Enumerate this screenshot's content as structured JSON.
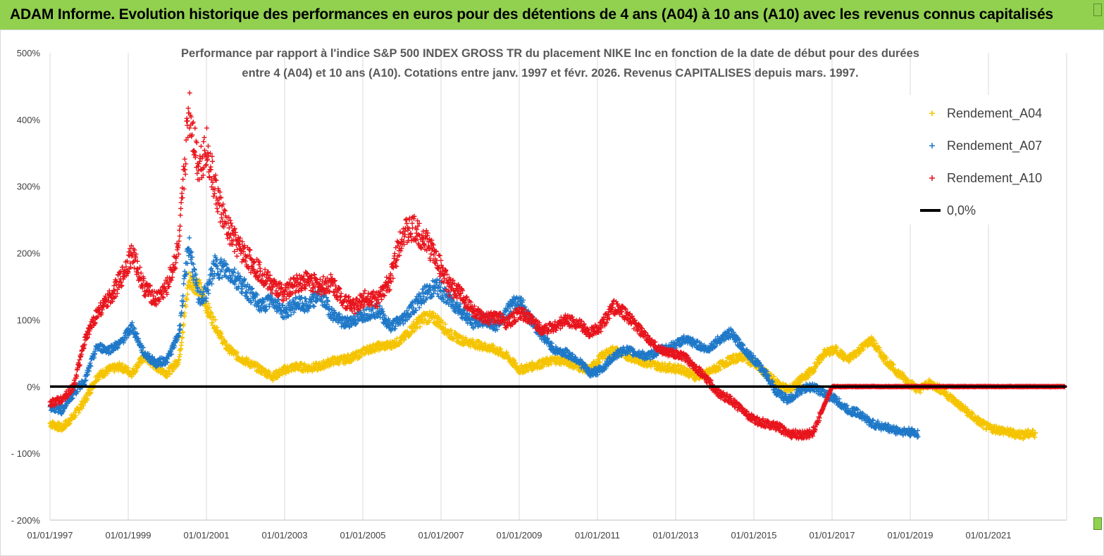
{
  "banner": {
    "title": "ADAM Informe. Evolution historique des performances en euros pour des détentions de 4 ans (A04) à 10 ans (A10) avec les revenus connus capitalisés"
  },
  "chart_data": {
    "type": "scatter",
    "title_line1": "Performance par rapport à l'indice S&P 500 INDEX GROSS TR  du placement NIKE Inc en fonction de la date de début pour des durées",
    "title_line2": "entre 4 (A04) et 10 ans (A10). Cotations entre janv. 1997 et févr. 2026. Revenus CAPITALISES depuis mars. 1997.",
    "xlabel": "",
    "ylabel": "",
    "xlim": [
      1997.0,
      2023.0
    ],
    "ylim": [
      -200,
      500
    ],
    "y_ticks": [
      -200,
      -100,
      0,
      100,
      200,
      300,
      400,
      500
    ],
    "y_tick_labels": [
      "- 200%",
      "- 100%",
      "0%",
      "100%",
      "200%",
      "300%",
      "400%",
      "500%"
    ],
    "x_ticks": [
      1997,
      1999,
      2001,
      2003,
      2005,
      2007,
      2009,
      2011,
      2013,
      2015,
      2017,
      2019,
      2021
    ],
    "x_tick_labels": [
      "01/01/1997",
      "01/01/1999",
      "01/01/2001",
      "01/01/2003",
      "01/01/2005",
      "01/01/2007",
      "01/01/2009",
      "01/01/2011",
      "01/01/2013",
      "01/01/2015",
      "01/01/2017",
      "01/01/2019",
      "01/01/2021"
    ],
    "grid": "vertical",
    "legend_position": "top-right",
    "series": [
      {
        "name": "Rendement_A04",
        "color": "#f5c400",
        "marker": "plus",
        "x": [
          1997.0,
          1997.3,
          1997.6,
          1997.9,
          1998.2,
          1998.5,
          1998.8,
          1999.1,
          1999.4,
          1999.7,
          2000.0,
          2000.3,
          2000.55,
          2000.8,
          2001.0,
          2001.2,
          2001.5,
          2001.8,
          2002.1,
          2002.4,
          2002.7,
          2003.0,
          2003.3,
          2003.6,
          2003.9,
          2004.2,
          2004.5,
          2004.8,
          2005.1,
          2005.4,
          2005.7,
          2006.0,
          2006.3,
          2006.6,
          2006.9,
          2007.2,
          2007.5,
          2007.8,
          2008.1,
          2008.4,
          2008.7,
          2009.0,
          2009.3,
          2009.6,
          2009.9,
          2010.2,
          2010.5,
          2010.8,
          2011.1,
          2011.4,
          2011.7,
          2012.0,
          2012.3,
          2012.6,
          2012.9,
          2013.2,
          2013.5,
          2013.8,
          2014.1,
          2014.4,
          2014.7,
          2015.0,
          2015.3,
          2015.6,
          2015.9,
          2016.2,
          2016.5,
          2016.8,
          2017.1,
          2017.4,
          2017.7,
          2018.0,
          2018.3,
          2018.6,
          2018.9,
          2019.2,
          2019.5,
          2019.8,
          2020.1,
          2020.4,
          2020.7,
          2021.0,
          2021.3,
          2021.6,
          2021.9,
          2022.2
        ],
        "y": [
          -55,
          -62,
          -45,
          -20,
          15,
          25,
          30,
          20,
          45,
          30,
          20,
          40,
          160,
          150,
          120,
          95,
          60,
          45,
          35,
          25,
          15,
          25,
          30,
          28,
          30,
          38,
          40,
          45,
          55,
          60,
          62,
          70,
          90,
          105,
          100,
          80,
          70,
          65,
          60,
          55,
          45,
          25,
          30,
          35,
          40,
          38,
          30,
          25,
          45,
          55,
          48,
          40,
          35,
          30,
          28,
          25,
          15,
          20,
          30,
          40,
          45,
          35,
          20,
          5,
          -5,
          10,
          25,
          50,
          55,
          40,
          55,
          70,
          45,
          25,
          10,
          -5,
          5,
          -5,
          -20,
          -35,
          -50,
          -62,
          -65,
          -70,
          -72,
          -70
        ]
      },
      {
        "name": "Rendement_A07",
        "color": "#1f78c8",
        "marker": "plus",
        "x": [
          1997.0,
          1997.3,
          1997.6,
          1997.9,
          1998.2,
          1998.5,
          1998.8,
          1999.1,
          1999.4,
          1999.7,
          2000.0,
          2000.3,
          2000.55,
          2000.8,
          2001.0,
          2001.2,
          2001.5,
          2001.8,
          2002.1,
          2002.4,
          2002.7,
          2003.0,
          2003.3,
          2003.6,
          2003.9,
          2004.2,
          2004.5,
          2004.8,
          2005.1,
          2005.4,
          2005.7,
          2006.0,
          2006.3,
          2006.6,
          2006.9,
          2007.2,
          2007.5,
          2007.8,
          2008.1,
          2008.4,
          2008.7,
          2009.0,
          2009.3,
          2009.6,
          2009.9,
          2010.2,
          2010.5,
          2010.8,
          2011.1,
          2011.4,
          2011.7,
          2012.0,
          2012.3,
          2012.6,
          2012.9,
          2013.2,
          2013.5,
          2013.8,
          2014.1,
          2014.4,
          2014.7,
          2015.0,
          2015.3,
          2015.6,
          2015.9,
          2016.2,
          2016.5,
          2016.8,
          2017.1,
          2017.4,
          2017.7,
          2018.0,
          2018.3,
          2018.6,
          2018.9,
          2019.2
        ],
        "y": [
          -30,
          -35,
          -10,
          10,
          60,
          55,
          65,
          90,
          50,
          35,
          40,
          80,
          215,
          130,
          140,
          180,
          175,
          160,
          140,
          120,
          130,
          110,
          125,
          120,
          140,
          110,
          95,
          100,
          110,
          115,
          90,
          100,
          120,
          140,
          150,
          130,
          115,
          95,
          100,
          90,
          115,
          130,
          100,
          75,
          55,
          50,
          40,
          20,
          25,
          45,
          55,
          50,
          45,
          55,
          60,
          70,
          65,
          55,
          70,
          80,
          60,
          40,
          20,
          -10,
          -20,
          -5,
          0,
          -10,
          -20,
          -35,
          -40,
          -55,
          -60,
          -65,
          -68,
          -70
        ]
      },
      {
        "name": "Rendement_A10",
        "color": "#e8141c",
        "marker": "plus",
        "x": [
          1997.0,
          1997.3,
          1997.6,
          1997.9,
          1998.2,
          1998.5,
          1998.8,
          1999.1,
          1999.4,
          1999.7,
          2000.0,
          2000.3,
          2000.55,
          2000.8,
          2001.0,
          2001.2,
          2001.5,
          2001.8,
          2002.1,
          2002.4,
          2002.7,
          2003.0,
          2003.3,
          2003.6,
          2003.9,
          2004.2,
          2004.5,
          2004.8,
          2005.1,
          2005.4,
          2005.7,
          2006.0,
          2006.3,
          2006.6,
          2006.9,
          2007.2,
          2007.5,
          2007.8,
          2008.1,
          2008.4,
          2008.7,
          2009.0,
          2009.3,
          2009.6,
          2009.9,
          2010.2,
          2010.5,
          2010.8,
          2011.1,
          2011.4,
          2011.7,
          2012.0,
          2012.3,
          2012.6,
          2012.9,
          2013.2,
          2013.5,
          2013.8,
          2014.1,
          2014.4,
          2014.7,
          2015.0,
          2015.3,
          2015.6,
          2015.9,
          2016.2,
          2016.5,
          2017.0,
          2017.5,
          2018.0,
          2018.5,
          2019.0,
          2019.5,
          2020.0,
          2020.5,
          2021.0,
          2021.5,
          2022.0,
          2022.5,
          2022.95
        ],
        "y": [
          -25,
          -20,
          0,
          70,
          110,
          130,
          160,
          200,
          150,
          130,
          150,
          210,
          420,
          330,
          360,
          300,
          240,
          210,
          190,
          170,
          150,
          140,
          155,
          160,
          150,
          155,
          130,
          120,
          135,
          130,
          160,
          230,
          235,
          220,
          190,
          150,
          140,
          115,
          100,
          105,
          95,
          110,
          100,
          85,
          90,
          100,
          95,
          80,
          90,
          120,
          110,
          90,
          70,
          55,
          50,
          45,
          30,
          10,
          -10,
          -20,
          -35,
          -50,
          -55,
          -60,
          -70,
          -72,
          -70,
          0,
          0,
          0,
          0,
          0,
          0,
          0,
          0,
          0,
          0,
          0,
          0,
          0
        ]
      },
      {
        "name": "0,0%",
        "color": "#000000",
        "marker": "line",
        "x": [
          1997.0,
          2023.0
        ],
        "y": [
          0,
          0
        ]
      }
    ]
  }
}
